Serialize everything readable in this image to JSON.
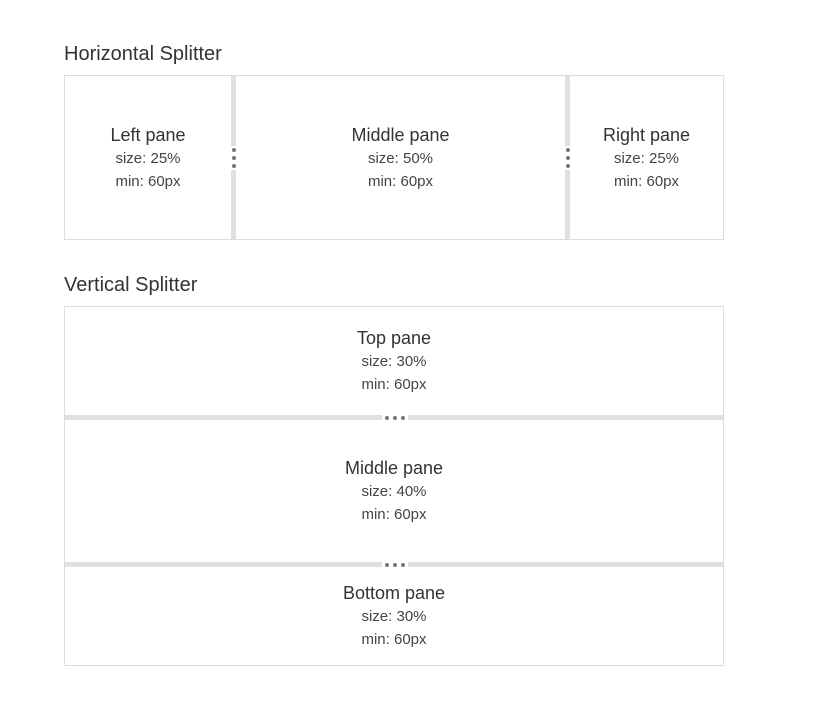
{
  "horizontal": {
    "title": "Horizontal Splitter",
    "panes": [
      {
        "name": "Left pane",
        "size": "size: 25%",
        "min": "min: 60px"
      },
      {
        "name": "Middle pane",
        "size": "size: 50%",
        "min": "min: 60px"
      },
      {
        "name": "Right pane",
        "size": "size: 25%",
        "min": "min: 60px"
      }
    ]
  },
  "vertical": {
    "title": "Vertical Splitter",
    "panes": [
      {
        "name": "Top pane",
        "size": "size: 30%",
        "min": "min: 60px"
      },
      {
        "name": "Middle pane",
        "size": "size: 40%",
        "min": "min: 60px"
      },
      {
        "name": "Bottom pane",
        "size": "size: 30%",
        "min": "min: 60px"
      }
    ]
  },
  "colors": {
    "border": "#dddddd",
    "gutter": "#e0e0e0",
    "handle_dot": "#777777",
    "text": "#333333"
  },
  "icons": {
    "gutter_handle_horizontal": "vertical-dots-icon",
    "gutter_handle_vertical": "horizontal-dots-icon"
  }
}
